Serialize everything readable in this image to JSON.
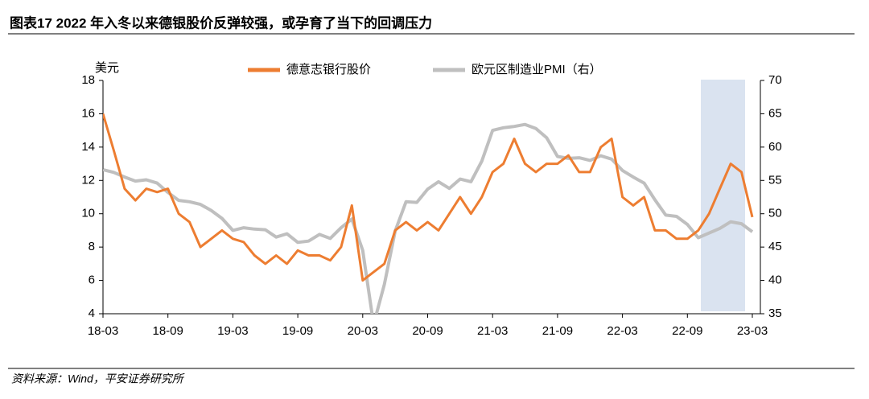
{
  "chart_data": {
    "type": "line",
    "title": "图表17    2022 年入冬以来德银股价反弹较强，或孕育了当下的回调压力",
    "source": "资料来源：Wind，平安证券研究所",
    "y_label": "美元",
    "categories": [
      "18-03",
      null,
      null,
      null,
      null,
      null,
      "18-09",
      null,
      null,
      null,
      null,
      null,
      "19-03",
      null,
      null,
      null,
      null,
      null,
      "19-09",
      null,
      null,
      null,
      null,
      null,
      "20-03",
      null,
      null,
      null,
      null,
      null,
      "20-09",
      null,
      null,
      null,
      null,
      null,
      "21-03",
      null,
      null,
      null,
      null,
      null,
      "21-09",
      null,
      null,
      null,
      null,
      null,
      "22-03",
      null,
      null,
      null,
      null,
      null,
      "22-09",
      null,
      null,
      null,
      null,
      null,
      "23-03"
    ],
    "series": [
      {
        "name": "德意志银行股价",
        "color": "#ed7d31",
        "values": [
          16.0,
          13.8,
          11.5,
          10.8,
          11.5,
          11.3,
          11.5,
          10.0,
          9.5,
          8.0,
          8.5,
          9.0,
          8.5,
          8.3,
          7.5,
          7.0,
          7.5,
          7.0,
          7.8,
          7.5,
          7.5,
          7.2,
          8.0,
          10.5,
          6.0,
          6.5,
          7.0,
          9.0,
          9.5,
          9.0,
          9.5,
          9.0,
          10.0,
          11.0,
          10.0,
          11.0,
          12.5,
          13.0,
          14.5,
          13.0,
          12.5,
          13.0,
          13.0,
          13.5,
          12.5,
          12.5,
          14.0,
          14.5,
          11.0,
          10.5,
          11.0,
          9.0,
          9.0,
          8.5,
          8.5,
          9.0,
          10.0,
          11.5,
          13.0,
          12.5,
          9.8
        ]
      },
      {
        "name": "欧元区制造业PMI（右）",
        "color": "#bfbfbf",
        "axis": "y2",
        "values": [
          56.6,
          56.2,
          55.5,
          54.9,
          55.1,
          54.6,
          53.2,
          52.0,
          51.8,
          51.4,
          50.5,
          49.3,
          47.5,
          47.9,
          47.7,
          47.6,
          46.5,
          47.0,
          45.7,
          45.9,
          46.9,
          46.3,
          47.9,
          49.2,
          44.5,
          33.4,
          39.4,
          47.4,
          51.8,
          51.7,
          53.7,
          54.8,
          53.8,
          55.2,
          54.8,
          57.9,
          62.5,
          62.9,
          63.1,
          63.4,
          62.8,
          61.4,
          58.6,
          58.3,
          58.4,
          58.0,
          58.7,
          58.2,
          56.5,
          55.5,
          54.6,
          52.1,
          49.8,
          49.6,
          48.4,
          46.4,
          47.1,
          47.8,
          48.8,
          48.5,
          47.3
        ]
      }
    ],
    "ylim": [
      4,
      18
    ],
    "yticks": [
      4,
      6,
      8,
      10,
      12,
      14,
      16,
      18
    ],
    "y2lim": [
      35,
      70
    ],
    "y2ticks": [
      35,
      40,
      45,
      50,
      55,
      60,
      65,
      70
    ],
    "legend": "top"
  }
}
